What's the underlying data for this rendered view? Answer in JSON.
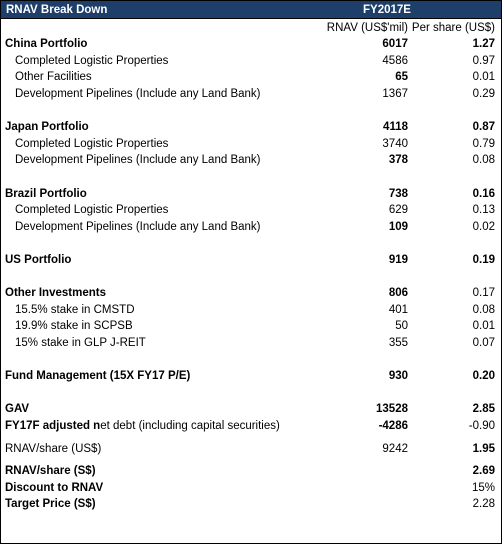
{
  "header": {
    "title": "RNAV Break Down",
    "period": "FY2017E"
  },
  "columns": {
    "rnav": "RNAV (US$'mil)",
    "per_share": "Per share (US$)"
  },
  "china": {
    "label": "China Portfolio",
    "rnav": "6017",
    "ps": "1.27",
    "items": [
      {
        "label": "Completed Logistic Properties",
        "rnav": "4586",
        "ps": "0.97"
      },
      {
        "label": "Other Facilities",
        "rnav": "65",
        "ps": "0.01"
      },
      {
        "label": "Development Pipelines (Include any Land Bank)",
        "rnav": "1367",
        "ps": "0.29"
      }
    ]
  },
  "japan": {
    "label": "Japan Portfolio",
    "rnav": "4118",
    "ps": "0.87",
    "items": [
      {
        "label": "Completed Logistic Properties",
        "rnav": "3740",
        "ps": "0.79"
      },
      {
        "label": "Development Pipelines (Include any Land Bank)",
        "rnav": "378",
        "ps": "0.08"
      }
    ]
  },
  "brazil": {
    "label": "Brazil Portfolio",
    "rnav": "738",
    "ps": "0.16",
    "items": [
      {
        "label": "Completed Logistic Properties",
        "rnav": "629",
        "ps": "0.13"
      },
      {
        "label": "Development Pipelines (Include any Land Bank)",
        "rnav": "109",
        "ps": "0.02"
      }
    ]
  },
  "us": {
    "label": "US Portfolio",
    "rnav": "919",
    "ps": "0.19"
  },
  "other": {
    "label": "Other Investments",
    "rnav": "806",
    "ps": "0.17",
    "items": [
      {
        "label": "15.5% stake in CMSTD",
        "rnav": "401",
        "ps": "0.08"
      },
      {
        "label": "19.9% stake in SCPSB",
        "rnav": "50",
        "ps": "0.01"
      },
      {
        "label": "15% stake in GLP J-REIT",
        "rnav": "355",
        "ps": "0.07"
      }
    ]
  },
  "fund": {
    "label": "Fund Management (15X FY17 P/E)",
    "rnav": "930",
    "ps": "0.20"
  },
  "gav": {
    "label": "GAV",
    "rnav": "13528",
    "ps": "2.85"
  },
  "netdebt": {
    "label_bold": "FY17F adjusted n",
    "label_rest": "et debt (including capital securities)",
    "rnav": "-4286",
    "ps": "-0.90"
  },
  "rnav_usd": {
    "label": "RNAV/share (US$)",
    "rnav": "9242",
    "ps": "1.95"
  },
  "rnav_sgd": {
    "label": "RNAV/share (S$)",
    "ps": "2.69"
  },
  "discount": {
    "label": "Discount to RNAV",
    "ps": "15%"
  },
  "target": {
    "label": "Target Price (S$)",
    "ps": "2.28"
  }
}
